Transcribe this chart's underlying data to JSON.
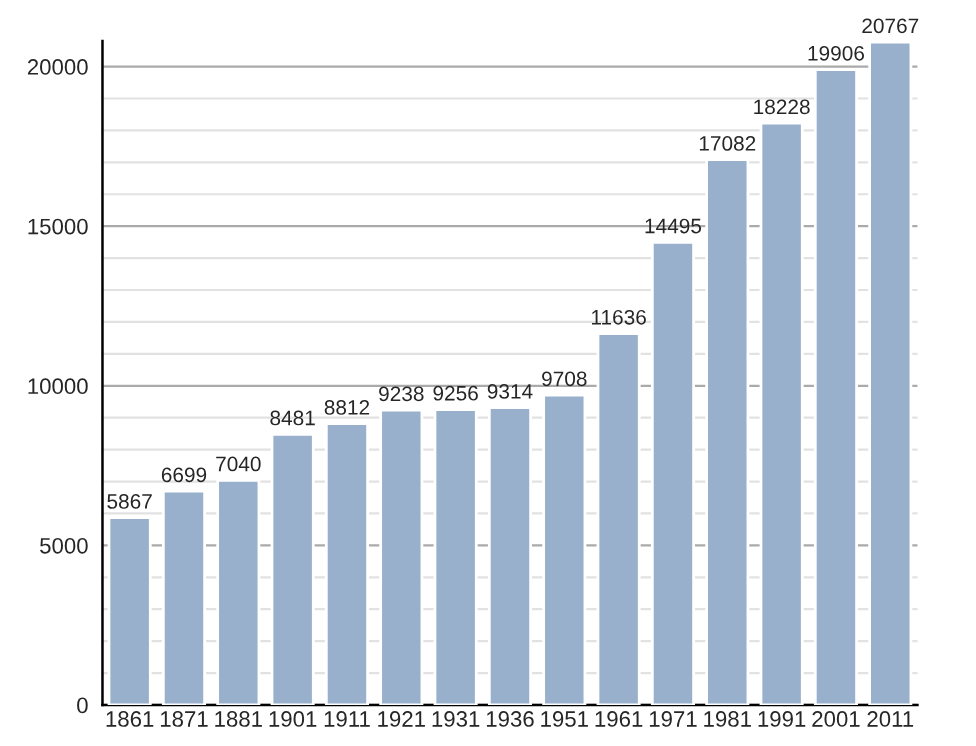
{
  "chart_data": {
    "type": "bar",
    "categories": [
      "1861",
      "1871",
      "1881",
      "1901",
      "1911",
      "1921",
      "1931",
      "1936",
      "1951",
      "1961",
      "1971",
      "1981",
      "1991",
      "2001",
      "2011"
    ],
    "values": [
      5867,
      6699,
      7040,
      8481,
      8812,
      9238,
      9256,
      9314,
      9708,
      11636,
      14495,
      17082,
      18228,
      19906,
      20767
    ],
    "color": "#98b0cb",
    "data_labels": true,
    "ylim": [
      0,
      20800
    ],
    "yticks": [
      0,
      {
        "value": 1000,
        "label": null
      },
      {
        "value": 2000,
        "label": null
      },
      {
        "value": 3000,
        "label": null
      },
      {
        "value": 4000,
        "label": null
      },
      5000,
      {
        "value": 6000,
        "label": null
      },
      {
        "value": 7000,
        "label": null
      },
      {
        "value": 8000,
        "label": null
      },
      {
        "value": 9000,
        "label": null
      },
      10000,
      {
        "value": 11000,
        "label": null
      },
      {
        "value": 12000,
        "label": null
      },
      {
        "value": 13000,
        "label": null
      },
      {
        "value": 14000,
        "label": null
      },
      15000,
      {
        "value": 16000,
        "label": null
      },
      {
        "value": 17000,
        "label": null
      },
      {
        "value": 18000,
        "label": null
      },
      {
        "value": 19000,
        "label": null
      },
      20000
    ],
    "grid": "y"
  }
}
